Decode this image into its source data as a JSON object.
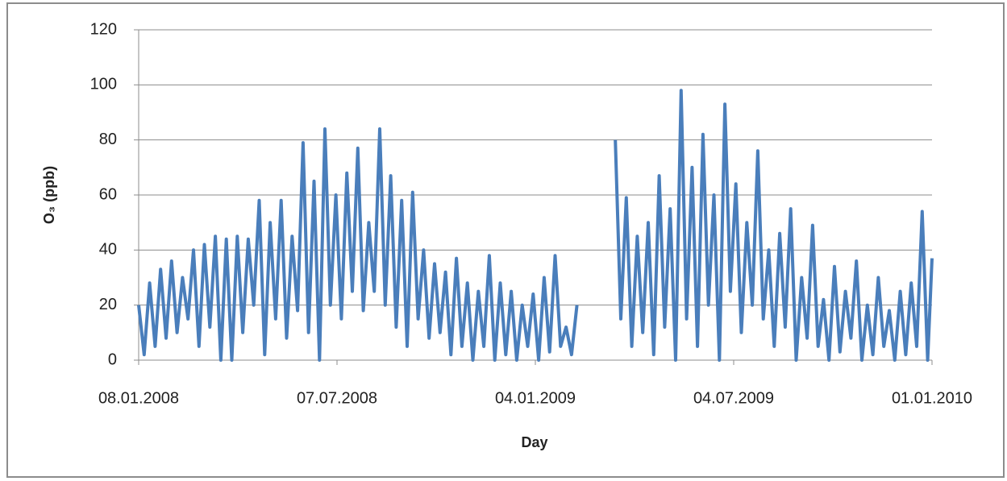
{
  "chart_data": {
    "type": "line",
    "y_label": "O₃ (ppb)",
    "x_label": "Day",
    "x": [
      "08.01.2008",
      "13.01.2008",
      "18.01.2008",
      "23.01.2008",
      "28.01.2008",
      "02.02.2008",
      "07.02.2008",
      "12.02.2008",
      "17.02.2008",
      "22.02.2008",
      "27.02.2008",
      "03.03.2008",
      "08.03.2008",
      "13.03.2008",
      "18.03.2008",
      "23.03.2008",
      "28.03.2008",
      "02.04.2008",
      "07.04.2008",
      "12.04.2008",
      "17.04.2008",
      "22.04.2008",
      "27.04.2008",
      "02.05.2008",
      "07.05.2008",
      "12.05.2008",
      "17.05.2008",
      "22.05.2008",
      "27.05.2008",
      "01.06.2008",
      "06.06.2008",
      "11.06.2008",
      "16.06.2008",
      "21.06.2008",
      "26.06.2008",
      "01.07.2008",
      "06.07.2008",
      "11.07.2008",
      "16.07.2008",
      "21.07.2008",
      "26.07.2008",
      "31.07.2008",
      "05.08.2008",
      "10.08.2008",
      "15.08.2008",
      "20.08.2008",
      "25.08.2008",
      "30.08.2008",
      "04.09.2008",
      "09.09.2008",
      "14.09.2008",
      "19.09.2008",
      "24.09.2008",
      "29.09.2008",
      "04.10.2008",
      "09.10.2008",
      "14.10.2008",
      "19.10.2008",
      "24.10.2008",
      "29.10.2008",
      "03.11.2008",
      "08.11.2008",
      "13.11.2008",
      "18.11.2008",
      "23.11.2008",
      "28.11.2008",
      "03.12.2008",
      "08.12.2008",
      "13.12.2008",
      "18.12.2008",
      "23.12.2008",
      "28.12.2008",
      "02.01.2009",
      "07.01.2009",
      "12.01.2009",
      "17.01.2009",
      "22.01.2009",
      "27.01.2009",
      "01.02.2009",
      "06.02.2009",
      "11.02.2009",
      "16.02.2009",
      "21.02.2009",
      "26.02.2009",
      "03.03.2009",
      "08.03.2009",
      "13.03.2009",
      "18.03.2009",
      "23.03.2009",
      "28.03.2009",
      "02.04.2009",
      "07.04.2009",
      "12.04.2009",
      "17.04.2009",
      "22.04.2009",
      "27.04.2009",
      "02.05.2009",
      "07.05.2009",
      "12.05.2009",
      "17.05.2009",
      "22.05.2009",
      "27.05.2009",
      "01.06.2009",
      "06.06.2009",
      "11.06.2009",
      "16.06.2009",
      "21.06.2009",
      "26.06.2009",
      "01.07.2009",
      "06.07.2009",
      "11.07.2009",
      "16.07.2009",
      "21.07.2009",
      "26.07.2009",
      "31.07.2009",
      "05.08.2009",
      "10.08.2009",
      "15.08.2009",
      "20.08.2009",
      "25.08.2009",
      "30.08.2009",
      "04.09.2009",
      "09.09.2009",
      "14.09.2009",
      "19.09.2009",
      "24.09.2009",
      "29.09.2009",
      "04.10.2009",
      "09.10.2009",
      "14.10.2009",
      "19.10.2009",
      "24.10.2009",
      "29.10.2009",
      "03.11.2009",
      "08.11.2009",
      "13.11.2009",
      "18.11.2009",
      "23.11.2009",
      "28.11.2009",
      "03.12.2009",
      "08.12.2009",
      "13.12.2009",
      "18.12.2009",
      "23.12.2009",
      "28.12.2009",
      "01.01.2010"
    ],
    "values": [
      20,
      2,
      28,
      5,
      33,
      8,
      36,
      10,
      30,
      15,
      40,
      5,
      42,
      12,
      45,
      0,
      44,
      0,
      45,
      10,
      44,
      20,
      58,
      2,
      50,
      15,
      58,
      8,
      45,
      18,
      79,
      10,
      65,
      0,
      84,
      20,
      60,
      15,
      68,
      25,
      77,
      18,
      50,
      25,
      84,
      20,
      67,
      12,
      58,
      5,
      61,
      15,
      40,
      8,
      35,
      10,
      32,
      2,
      37,
      5,
      28,
      0,
      25,
      5,
      38,
      0,
      28,
      2,
      25,
      0,
      20,
      5,
      24,
      0,
      30,
      3,
      38,
      5,
      12,
      2,
      20,
      null,
      null,
      null,
      null,
      null,
      null,
      80,
      15,
      59,
      5,
      45,
      10,
      50,
      2,
      67,
      12,
      55,
      0,
      98,
      15,
      70,
      5,
      82,
      20,
      60,
      0,
      93,
      25,
      64,
      10,
      50,
      20,
      76,
      15,
      40,
      5,
      46,
      12,
      55,
      0,
      30,
      8,
      49,
      5,
      22,
      0,
      34,
      3,
      25,
      8,
      36,
      0,
      20,
      2,
      30,
      5,
      18,
      0,
      25,
      2,
      28,
      5,
      54,
      0,
      37
    ],
    "color": "#4a7ebb",
    "xlim": [
      "08.01.2008",
      "01.01.2010"
    ],
    "xticks": [
      "08.01.2008",
      "07.07.2008",
      "04.01.2009",
      "04.07.2009",
      "01.01.2010"
    ],
    "ylim": [
      0,
      120
    ],
    "yticks": [
      0,
      20,
      40,
      60,
      80,
      100,
      120
    ],
    "grid": true
  }
}
